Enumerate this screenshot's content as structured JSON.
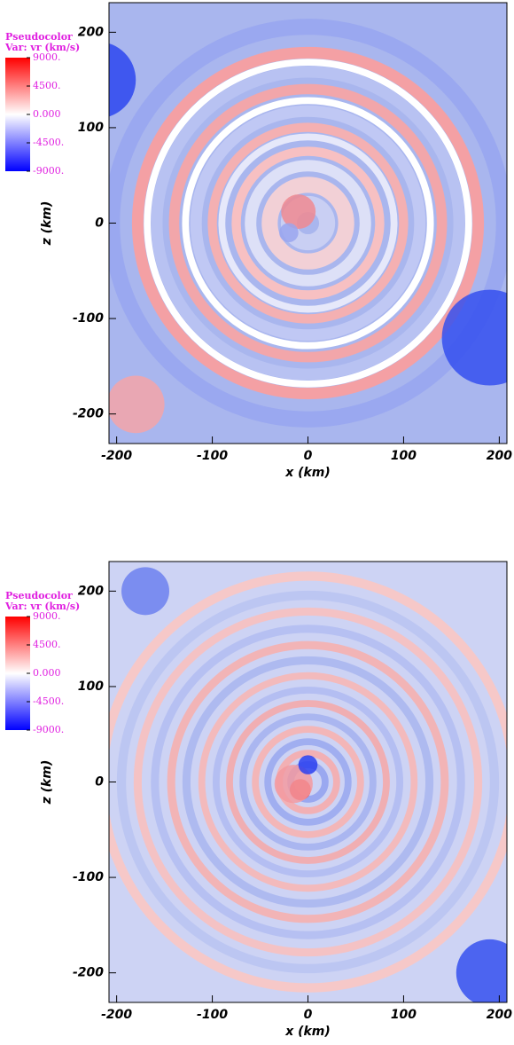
{
  "chart_data": [
    {
      "type": "heatmap",
      "legend_title": "Pseudocolor",
      "legend_var": "Var: vr (km/s)",
      "clim": [
        -9000,
        9000
      ],
      "colormap": [
        "#0000ff",
        "#ffffff",
        "#ff0000"
      ],
      "colorbar_ticks": [
        {
          "value": 9000,
          "label": "9000."
        },
        {
          "value": 4500,
          "label": "4500."
        },
        {
          "value": 0,
          "label": "0.000"
        },
        {
          "value": -4500,
          "label": "-4500."
        },
        {
          "value": -9000,
          "label": "-9000."
        }
      ],
      "xlabel": "x  (km)",
      "ylabel": "z  (km)",
      "xlim": [
        -208,
        208
      ],
      "ylim": [
        -231,
        231
      ],
      "xticks": [
        -200,
        -100,
        0,
        100,
        200
      ],
      "yticks": [
        -200,
        -100,
        0,
        100,
        200
      ]
    },
    {
      "type": "heatmap",
      "legend_title": "Pseudocolor",
      "legend_var": "Var: vr (km/s)",
      "clim": [
        -9000,
        9000
      ],
      "colormap": [
        "#0000ff",
        "#ffffff",
        "#ff0000"
      ],
      "colorbar_ticks": [
        {
          "value": 9000,
          "label": "9000."
        },
        {
          "value": 4500,
          "label": "4500."
        },
        {
          "value": 0,
          "label": "0.000"
        },
        {
          "value": -4500,
          "label": "-4500."
        },
        {
          "value": -9000,
          "label": "-9000."
        }
      ],
      "xlabel": "x  (km)",
      "ylabel": "z  (km)",
      "xlim": [
        -208,
        208
      ],
      "ylim": [
        -231,
        231
      ],
      "xticks": [
        -200,
        -100,
        0,
        100,
        200
      ],
      "yticks": [
        -200,
        -100,
        0,
        100,
        200
      ]
    }
  ]
}
